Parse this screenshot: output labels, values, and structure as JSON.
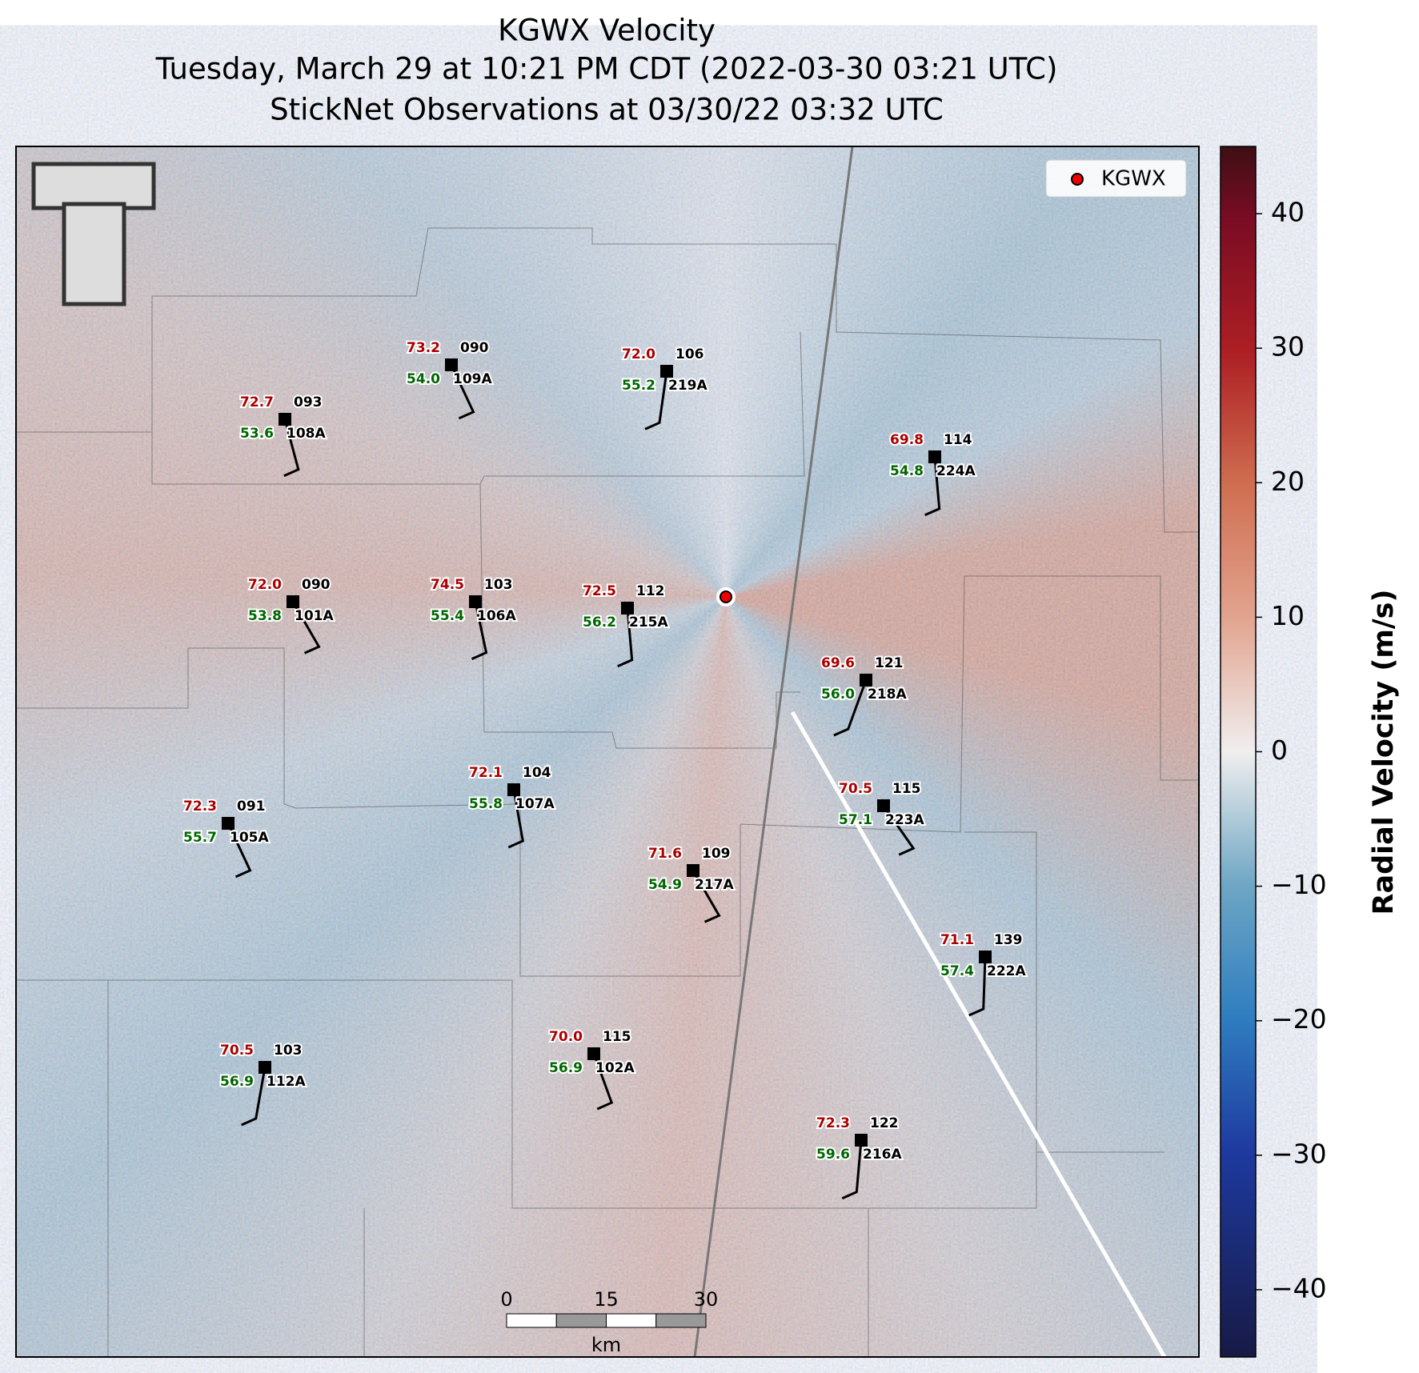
{
  "title": [
    "KGWX Velocity",
    "Tuesday, March 29 at 10:21 PM CDT (2022-03-30 03:21 UTC)",
    "StickNet Observations at 03/30/22 03:32 UTC"
  ],
  "legend": "KGWX",
  "stations": [
    {
      "temperature": "72.7",
      "dewpoint": "53.6",
      "number": "093",
      "id": "108A"
    },
    {
      "temperature": "73.2",
      "dewpoint": "54.0",
      "number": "090",
      "id": "109A"
    },
    {
      "temperature": "72.0",
      "dewpoint": "55.2",
      "number": "106",
      "id": "219A"
    },
    {
      "temperature": "69.8",
      "dewpoint": "54.8",
      "number": "114",
      "id": "224A"
    },
    {
      "temperature": "72.0",
      "dewpoint": "53.8",
      "number": "090",
      "id": "101A"
    },
    {
      "temperature": "74.5",
      "dewpoint": "55.4",
      "number": "103",
      "id": "106A"
    },
    {
      "temperature": "72.5",
      "dewpoint": "56.2",
      "number": "112",
      "id": "215A"
    },
    {
      "temperature": "69.6",
      "dewpoint": "56.0",
      "number": "121",
      "id": "218A"
    },
    {
      "temperature": "72.3",
      "dewpoint": "55.7",
      "number": "091",
      "id": "105A"
    },
    {
      "temperature": "72.1",
      "dewpoint": "55.8",
      "number": "104",
      "id": "107A"
    },
    {
      "temperature": "70.5",
      "dewpoint": "57.1",
      "number": "115",
      "id": "223A"
    },
    {
      "temperature": "71.6",
      "dewpoint": "54.9",
      "number": "109",
      "id": "217A"
    },
    {
      "temperature": "71.1",
      "dewpoint": "57.4",
      "number": "139",
      "id": "222A"
    },
    {
      "temperature": "70.5",
      "dewpoint": "56.9",
      "number": "103",
      "id": "112A"
    },
    {
      "temperature": "70.0",
      "dewpoint": "56.9",
      "number": "115",
      "id": "102A"
    },
    {
      "temperature": "72.3",
      "dewpoint": "59.6",
      "number": "122",
      "id": "216A"
    }
  ],
  "colorbar": {
    "label": "Radial Velocity (m/s)",
    "lim": [
      -45,
      45
    ],
    "ticks": [
      {
        "value": -40,
        "label": "−40"
      },
      {
        "value": -30,
        "label": "−30"
      },
      {
        "value": -20,
        "label": "−20"
      },
      {
        "value": -10,
        "label": "−10"
      },
      0,
      10,
      20,
      30,
      40
    ]
  },
  "scale_bar": {
    "ticks": [
      0,
      15,
      30
    ],
    "unit": "km"
  }
}
